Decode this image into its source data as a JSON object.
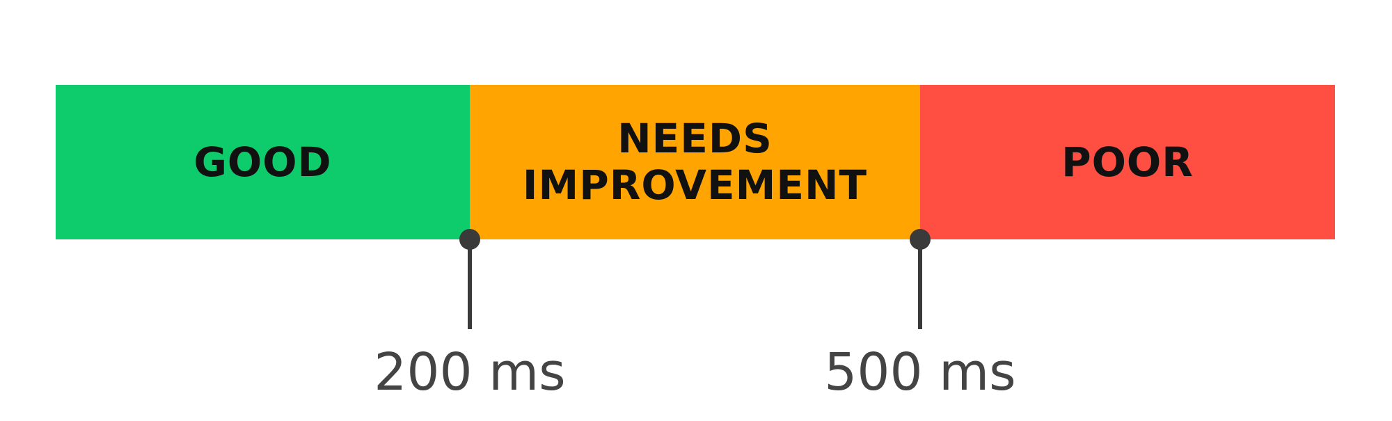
{
  "scale": {
    "segments": [
      {
        "label": "GOOD",
        "color": "#0ecc6b"
      },
      {
        "label": "NEEDS\nIMPROVEMENT",
        "color": "#ffa400"
      },
      {
        "label": "POOR",
        "color": "#ff4e42"
      }
    ],
    "thresholds": [
      {
        "value": 200,
        "label": "200 ms"
      },
      {
        "value": 500,
        "label": "500 ms"
      }
    ],
    "marker_color": "#3a3a3a",
    "text_color": "#111111",
    "threshold_text_color": "#444444"
  }
}
